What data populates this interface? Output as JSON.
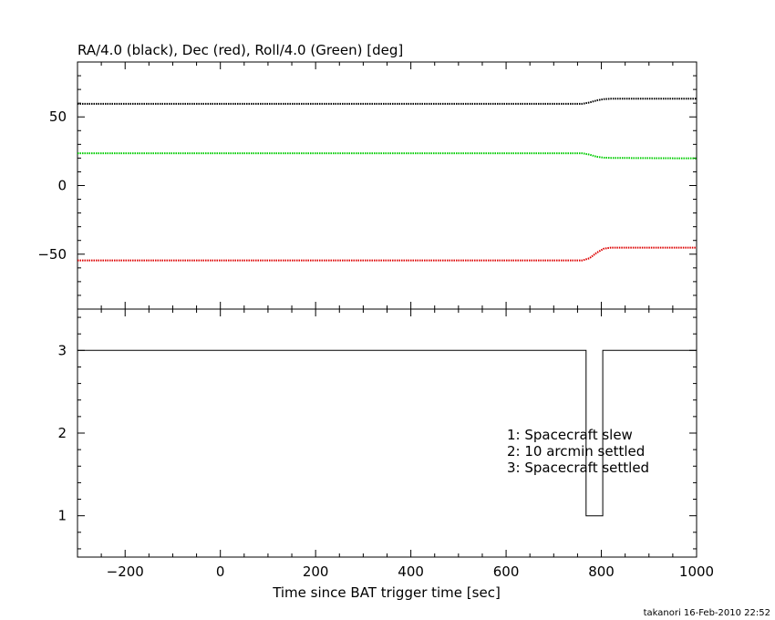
{
  "chart_data": [
    {
      "type": "line",
      "title": "RA/4.0 (black), Dec (red), Roll/4.0 (Green) [deg]",
      "xlim": [
        -300,
        1000
      ],
      "ylim": [
        -90,
        90
      ],
      "yticks": [
        -50,
        0,
        50
      ],
      "series": [
        {
          "color": "#000000",
          "x": [
            -300,
            760,
            775,
            790,
            805,
            820,
            1000
          ],
          "y": [
            59.5,
            59.5,
            60.5,
            62,
            63,
            63.2,
            63.2
          ]
        },
        {
          "color": "#00cc00",
          "x": [
            -300,
            760,
            775,
            790,
            805,
            820,
            1000
          ],
          "y": [
            23.5,
            23.5,
            22.5,
            21,
            20.3,
            20.1,
            19.8
          ]
        },
        {
          "color": "#dd0000",
          "x": [
            -300,
            760,
            775,
            790,
            805,
            820,
            1000
          ],
          "y": [
            -54.5,
            -54.5,
            -53,
            -49,
            -46,
            -45.2,
            -45.2
          ]
        }
      ]
    },
    {
      "type": "line",
      "xlabel": "Time since BAT trigger time [sec]",
      "xlim": [
        -300,
        1000
      ],
      "ylim": [
        0.5,
        3.5
      ],
      "yticks": [
        1,
        2,
        3
      ],
      "xticks": [
        -200,
        0,
        200,
        400,
        600,
        800,
        1000
      ],
      "series": [
        {
          "color": "#000000",
          "x": [
            -300,
            768,
            768,
            803,
            803,
            815,
            815,
            1000
          ],
          "y": [
            3,
            3,
            1,
            1,
            3,
            3,
            3,
            3
          ]
        }
      ],
      "annotations": [
        "1: Spacecraft slew",
        "2: 10 arcmin settled",
        "3: Spacecraft settled"
      ]
    }
  ],
  "footer": "takanori 16-Feb-2010 22:52"
}
